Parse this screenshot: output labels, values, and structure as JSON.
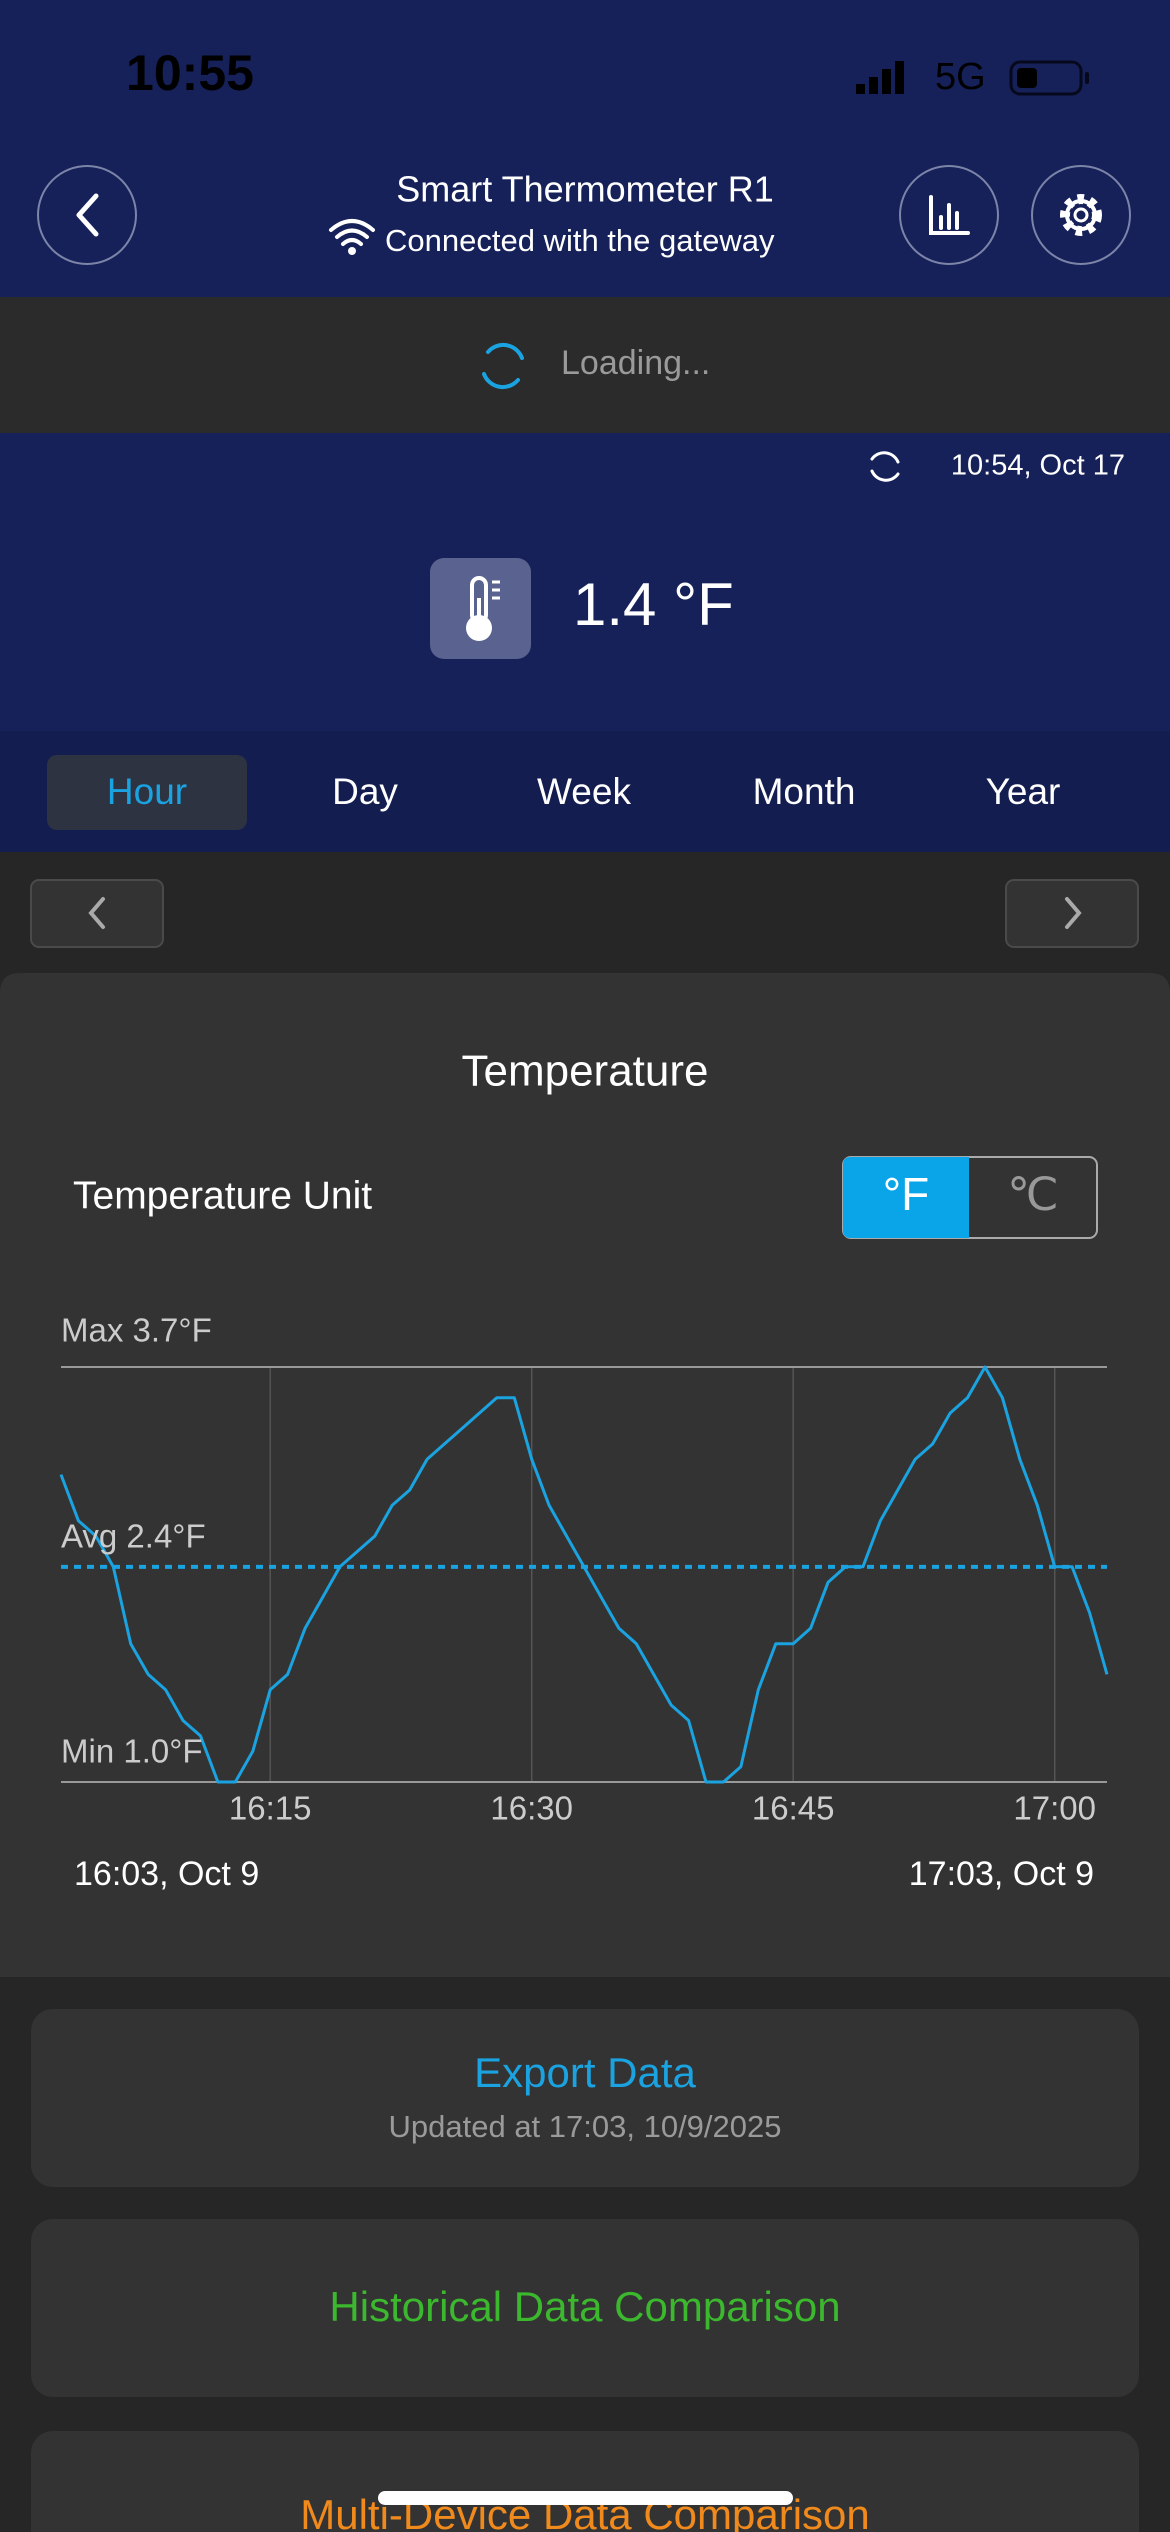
{
  "status": {
    "time": "10:55",
    "network": "5G"
  },
  "header": {
    "title": "Smart Thermometer R1",
    "subtitle": "Connected with the gateway"
  },
  "loading": "Loading...",
  "reading": {
    "updated": "10:54,  Oct 17",
    "value": "1.4 °F"
  },
  "tabs": [
    "Hour",
    "Day",
    "Week",
    "Month",
    "Year"
  ],
  "unit": {
    "label": "Temperature Unit",
    "options": [
      "°F",
      "℃"
    ]
  },
  "chart_data": {
    "type": "line",
    "title": "Temperature",
    "color": "#1aa3e0",
    "x": [
      "16:03",
      "16:04",
      "16:05",
      "16:06",
      "16:07",
      "16:08",
      "16:09",
      "16:10",
      "16:11",
      "16:12",
      "16:13",
      "16:14",
      "16:15",
      "16:16",
      "16:17",
      "16:18",
      "16:19",
      "16:20",
      "16:21",
      "16:22",
      "16:23",
      "16:24",
      "16:25",
      "16:26",
      "16:27",
      "16:28",
      "16:29",
      "16:30",
      "16:31",
      "16:32",
      "16:33",
      "16:34",
      "16:35",
      "16:36",
      "16:37",
      "16:38",
      "16:39",
      "16:40",
      "16:41",
      "16:42",
      "16:43",
      "16:44",
      "16:45",
      "16:46",
      "16:47",
      "16:48",
      "16:49",
      "16:50",
      "16:51",
      "16:52",
      "16:53",
      "16:54",
      "16:55",
      "16:56",
      "16:57",
      "16:58",
      "16:59",
      "17:00",
      "17:01",
      "17:02",
      "17:03"
    ],
    "values": [
      3.0,
      2.7,
      2.6,
      2.4,
      1.9,
      1.7,
      1.6,
      1.4,
      1.3,
      1.0,
      1.0,
      1.2,
      1.6,
      1.7,
      2.0,
      2.2,
      2.4,
      2.5,
      2.6,
      2.8,
      2.9,
      3.1,
      3.2,
      3.3,
      3.4,
      3.5,
      3.5,
      3.1,
      2.8,
      2.6,
      2.4,
      2.2,
      2.0,
      1.9,
      1.7,
      1.5,
      1.4,
      1.0,
      1.0,
      1.1,
      1.6,
      1.9,
      1.9,
      2.0,
      2.3,
      2.4,
      2.4,
      2.7,
      2.9,
      3.1,
      3.2,
      3.4,
      3.5,
      3.7,
      3.5,
      3.1,
      2.8,
      2.4,
      2.4,
      2.1,
      1.7
    ],
    "xlim": [
      "16:03",
      "17:03"
    ],
    "xticks": [
      "16:15",
      "16:30",
      "16:45",
      "17:00"
    ],
    "ylim": [
      1.0,
      3.7
    ],
    "reference_lines": [
      {
        "value": 3.7,
        "label": "Max 3.7°F",
        "style": "solid"
      },
      {
        "value": 2.4,
        "label": "Avg 2.4°F",
        "style": "dashed"
      },
      {
        "value": 1.0,
        "label": "Min 1.0°F",
        "style": "solid"
      }
    ],
    "range_start": "16:03,  Oct 9",
    "range_end": "17:03,  Oct 9"
  },
  "actions": {
    "export": {
      "title": "Export Data",
      "subtitle": "Updated at 17:03,  10/9/2025"
    },
    "historical": "Historical Data Comparison",
    "multi": "Multi-Device Data Comparison"
  }
}
